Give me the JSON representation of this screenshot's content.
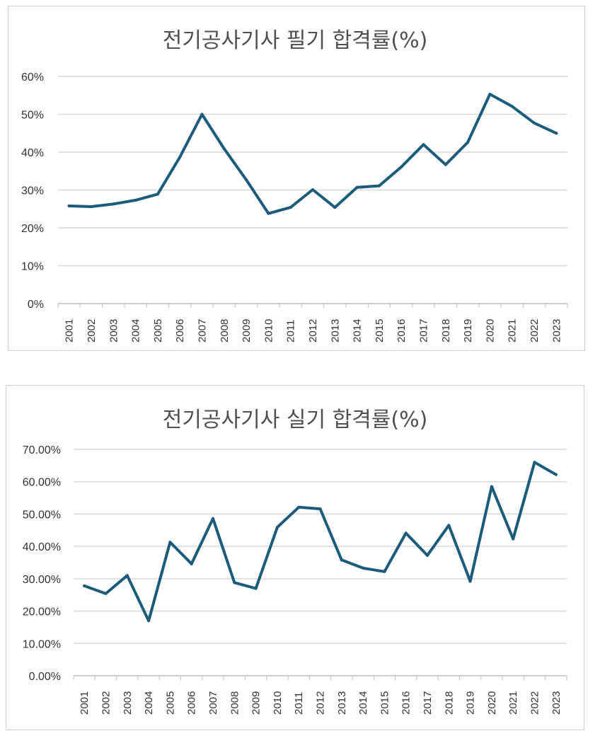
{
  "colors": {
    "series": "#1b5b7b",
    "grid": "#d9d9d9",
    "axis": "#bfbfbf",
    "title": "#505050"
  },
  "chart_data": [
    {
      "type": "line",
      "title": "전기공사기사 필기 합격률(%)",
      "categories": [
        "2001",
        "2002",
        "2003",
        "2004",
        "2005",
        "2006",
        "2007",
        "2008",
        "2009",
        "2010",
        "2011",
        "2012",
        "2013",
        "2014",
        "2015",
        "2016",
        "2017",
        "2018",
        "2019",
        "2020",
        "2021",
        "2022",
        "2023"
      ],
      "values": [
        25.8,
        25.6,
        26.3,
        27.3,
        28.9,
        38.7,
        50.0,
        40.9,
        32.7,
        23.8,
        25.4,
        30.1,
        25.4,
        30.7,
        31.1,
        36.1,
        42.0,
        36.7,
        42.6,
        55.3,
        52.1,
        47.7,
        45.0
      ],
      "ylim": [
        0,
        60
      ],
      "yticks": [
        0,
        10,
        20,
        30,
        40,
        50,
        60
      ],
      "ytick_labels": [
        "0%",
        "10%",
        "20%",
        "30%",
        "40%",
        "50%",
        "60%"
      ],
      "xlabel": "",
      "ylabel": "",
      "grid": true
    },
    {
      "type": "line",
      "title": "전기공사기사 실기 합격률(%)",
      "categories": [
        "2001",
        "2002",
        "2003",
        "2004",
        "2005",
        "2006",
        "2007",
        "2008",
        "2009",
        "2010",
        "2011",
        "2012",
        "2013",
        "2014",
        "2015",
        "2016",
        "2017",
        "2018",
        "2019",
        "2020",
        "2021",
        "2022",
        "2023"
      ],
      "values": [
        27.8,
        25.4,
        31.0,
        17.0,
        41.3,
        34.6,
        48.6,
        28.8,
        27.0,
        45.9,
        52.1,
        51.6,
        35.8,
        33.3,
        32.2,
        44.1,
        37.2,
        46.5,
        29.2,
        58.5,
        42.3,
        66.0,
        62.2
      ],
      "ylim": [
        0,
        70
      ],
      "yticks": [
        0,
        10,
        20,
        30,
        40,
        50,
        60,
        70
      ],
      "ytick_labels": [
        "0.00%",
        "10.00%",
        "20.00%",
        "30.00%",
        "40.00%",
        "50.00%",
        "60.00%",
        "70.00%"
      ],
      "xlabel": "",
      "ylabel": "",
      "grid": true
    }
  ]
}
